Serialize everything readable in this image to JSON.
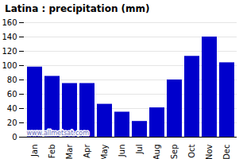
{
  "chart_data": {
    "type": "bar",
    "title": "Latina : precipitation (mm)",
    "categories": [
      "Jan",
      "Feb",
      "Mar",
      "Apr",
      "May",
      "Jun",
      "Jul",
      "Aug",
      "Sep",
      "Oct",
      "Nov",
      "Dec"
    ],
    "values": [
      98,
      85,
      75,
      75,
      46,
      35,
      22,
      41,
      80,
      113,
      140,
      104
    ],
    "color": "#0000cc",
    "ylim": [
      0,
      160
    ],
    "yticks": [
      0,
      20,
      40,
      60,
      80,
      100,
      120,
      140,
      160
    ],
    "grid": true,
    "annotations": [
      "www.allmetsat.com"
    ]
  }
}
